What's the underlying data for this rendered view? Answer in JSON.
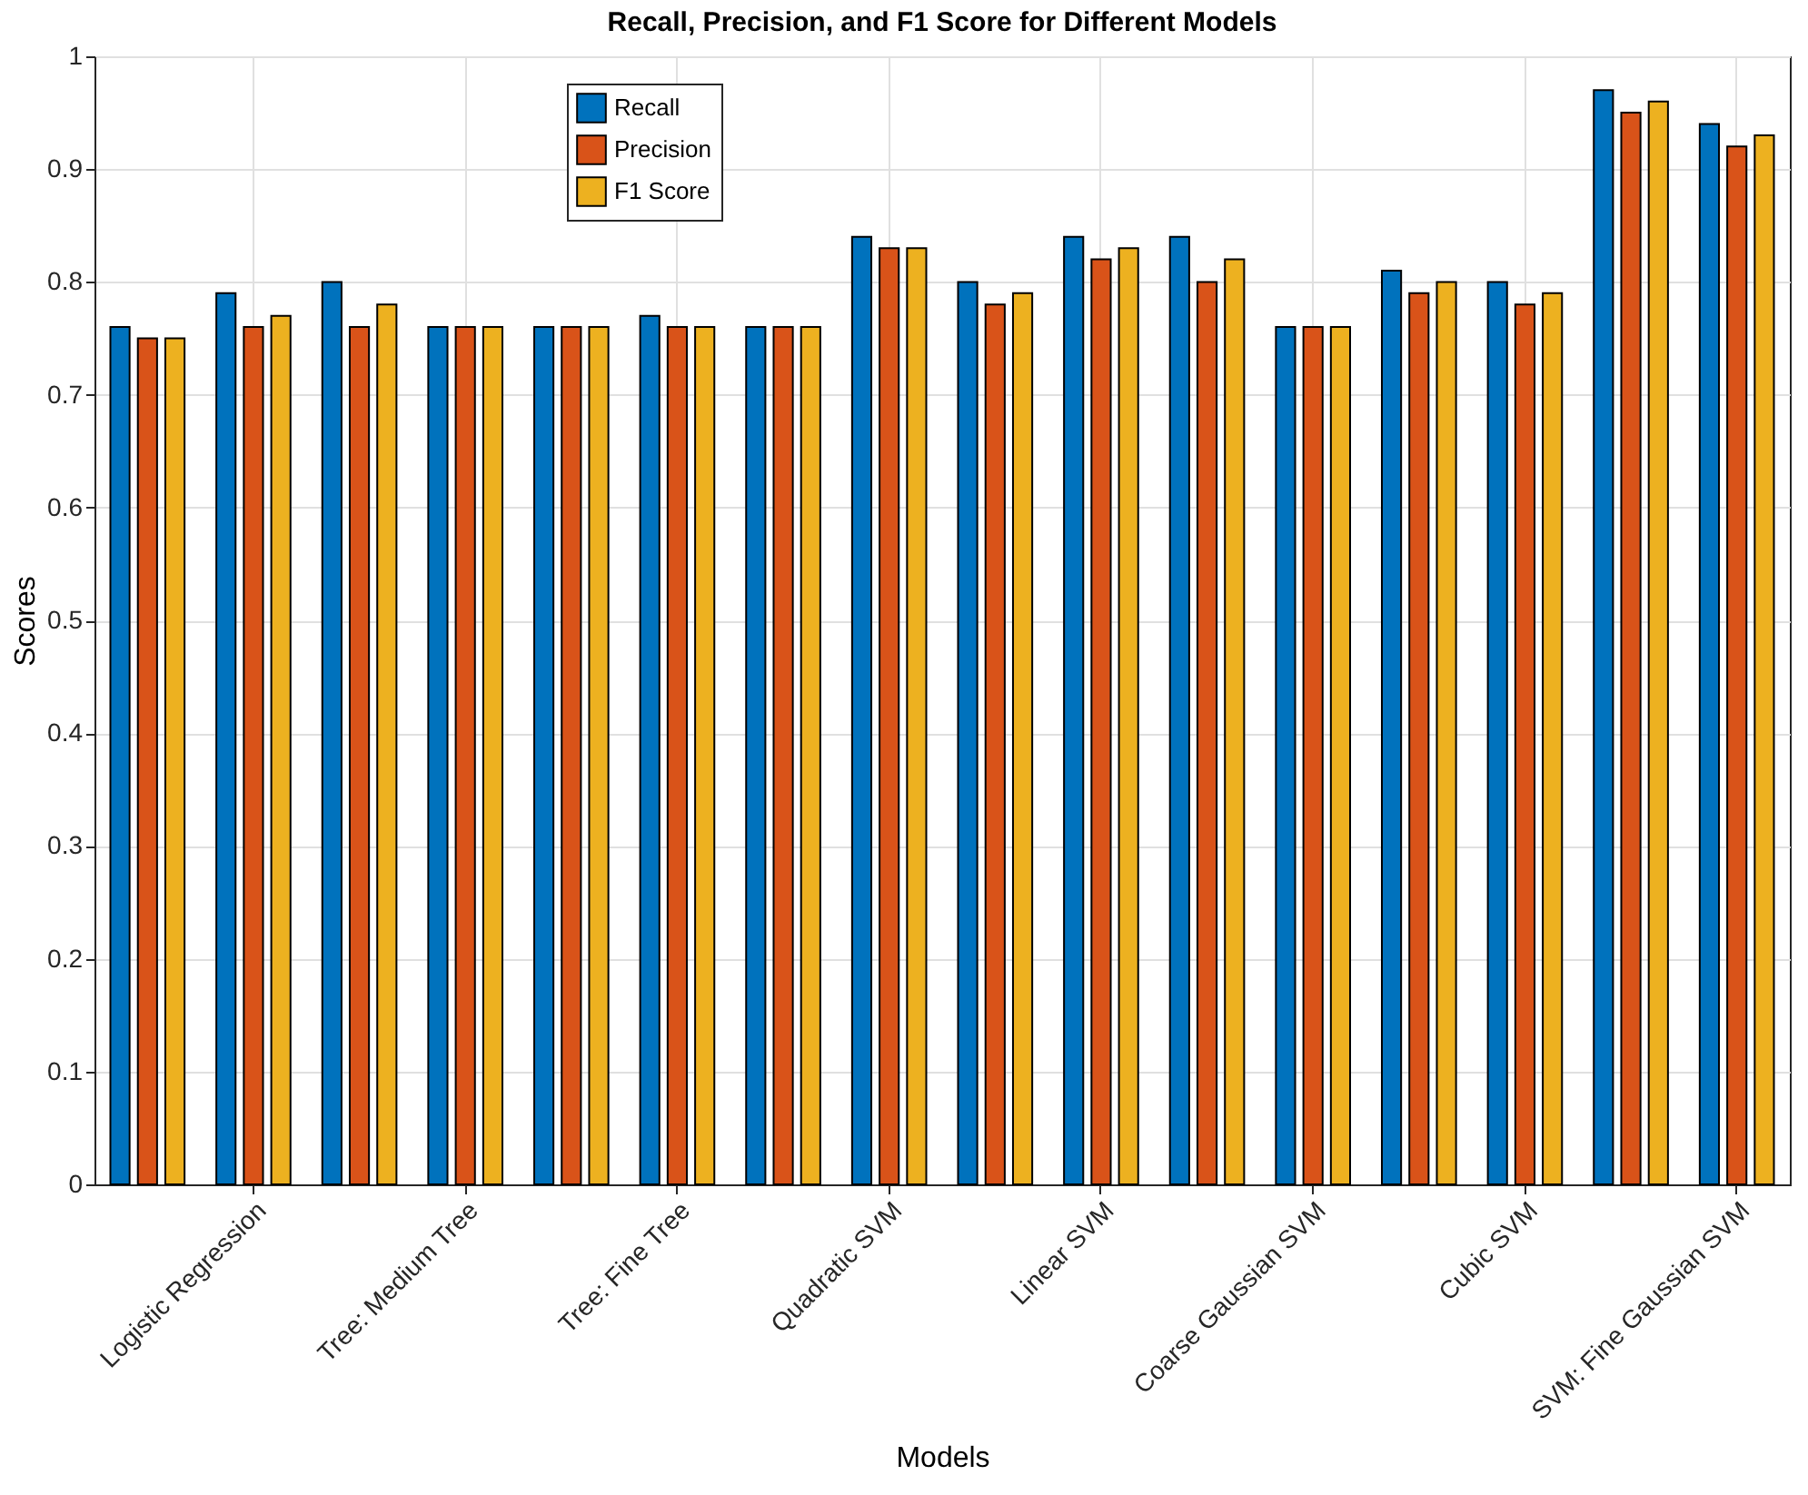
{
  "chart_data": {
    "type": "bar",
    "title": "Recall, Precision, and F1 Score for Different Models",
    "xlabel": "Models",
    "ylabel": "Scores",
    "categories": [
      null,
      "Logistic Regression",
      null,
      "Tree: Medium Tree",
      null,
      "Tree: Fine Tree",
      null,
      "Quadratic SVM",
      null,
      "Linear SVM",
      null,
      "Coarse Gaussian SVM",
      null,
      "Cubic SVM",
      null,
      "SVM: Fine Gaussian SVM"
    ],
    "series": [
      {
        "name": "Recall",
        "color": "#0072bd",
        "values": [
          0.76,
          0.79,
          0.8,
          0.76,
          0.76,
          0.77,
          0.76,
          0.84,
          0.8,
          0.84,
          0.84,
          0.76,
          0.81,
          0.8,
          0.97,
          0.94
        ]
      },
      {
        "name": "Precision",
        "color": "#d95319",
        "values": [
          0.75,
          0.76,
          0.76,
          0.76,
          0.76,
          0.76,
          0.76,
          0.83,
          0.78,
          0.82,
          0.8,
          0.76,
          0.79,
          0.78,
          0.95,
          0.92
        ]
      },
      {
        "name": "F1 Score",
        "color": "#edb120",
        "values": [
          0.75,
          0.77,
          0.78,
          0.76,
          0.76,
          0.76,
          0.76,
          0.83,
          0.79,
          0.83,
          0.82,
          0.76,
          0.8,
          0.79,
          0.96,
          0.93
        ]
      }
    ],
    "ylim": [
      0,
      1
    ],
    "yticks": [
      0,
      0.1,
      0.2,
      0.3,
      0.4,
      0.5,
      0.6,
      0.7,
      0.8,
      0.9,
      1
    ],
    "grid": true,
    "legend": "top"
  }
}
